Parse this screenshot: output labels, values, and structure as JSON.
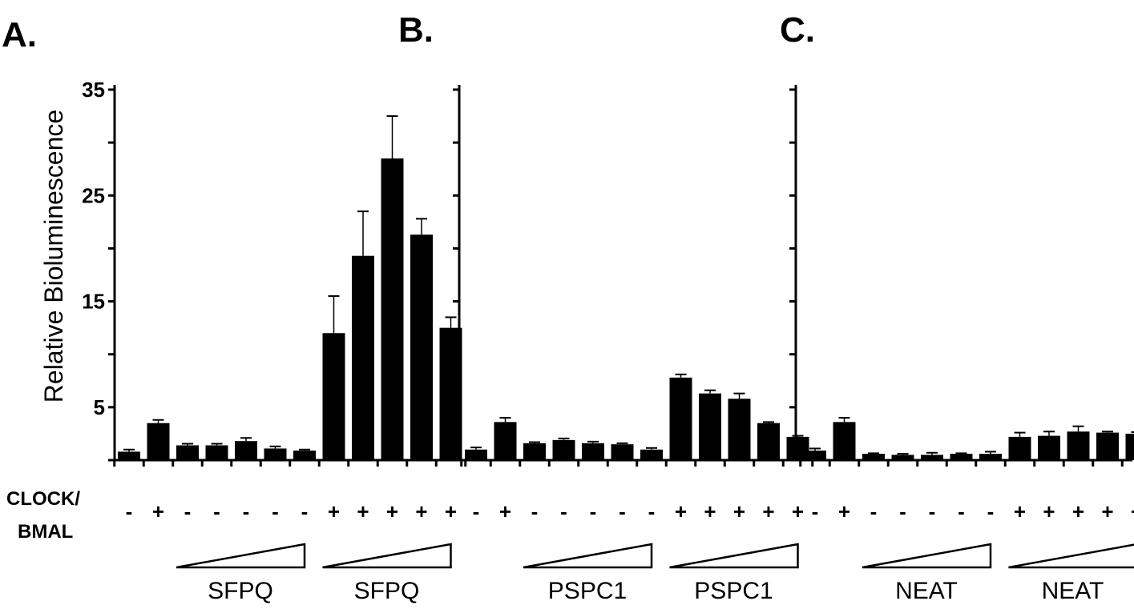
{
  "chart_data": {
    "type": "bar",
    "ylabel": "Relative Bioluminescence",
    "ylim": [
      0,
      35
    ],
    "yticks": [
      "35",
      "25",
      "15",
      "5"
    ],
    "row_label": [
      "CLOCK/",
      "BMAL"
    ],
    "panels": [
      {
        "label": "A.",
        "show_ytick_labels": true,
        "signs": [
          "-",
          "+",
          "-",
          "-",
          "-",
          "-",
          "-",
          "+",
          "+",
          "+",
          "+",
          "+"
        ],
        "values": [
          0.8,
          3.5,
          1.4,
          1.4,
          1.8,
          1.1,
          0.9,
          12.0,
          19.3,
          28.5,
          21.3,
          12.5
        ],
        "errors": [
          0.2,
          0.3,
          0.15,
          0.15,
          0.3,
          0.2,
          0.1,
          3.5,
          4.2,
          4.0,
          1.5,
          1.0
        ],
        "groups": [
          "SFPQ",
          "SFPQ"
        ]
      },
      {
        "label": "B.",
        "show_ytick_labels": false,
        "signs": [
          "-",
          "+",
          "-",
          "-",
          "-",
          "-",
          "-",
          "+",
          "+",
          "+",
          "+",
          "+"
        ],
        "values": [
          1.0,
          3.6,
          1.6,
          1.9,
          1.6,
          1.5,
          1.0,
          7.8,
          6.3,
          5.8,
          3.5,
          2.2
        ],
        "errors": [
          0.2,
          0.4,
          0.1,
          0.15,
          0.15,
          0.1,
          0.15,
          0.3,
          0.3,
          0.5,
          0.1,
          0.1
        ],
        "groups": [
          "PSPC1",
          "PSPC1"
        ]
      },
      {
        "label": "C.",
        "show_ytick_labels": false,
        "signs": [
          "-",
          "+",
          "-",
          "-",
          "-",
          "-",
          "-",
          "+",
          "+",
          "+",
          "+",
          "+"
        ],
        "values": [
          0.9,
          3.6,
          0.6,
          0.5,
          0.5,
          0.6,
          0.6,
          2.2,
          2.3,
          2.7,
          2.6,
          2.5
        ],
        "errors": [
          0.2,
          0.4,
          0.05,
          0.1,
          0.2,
          0.05,
          0.2,
          0.4,
          0.4,
          0.5,
          0.1,
          0.15
        ],
        "groups": [
          "NEAT",
          "NEAT"
        ]
      }
    ]
  }
}
